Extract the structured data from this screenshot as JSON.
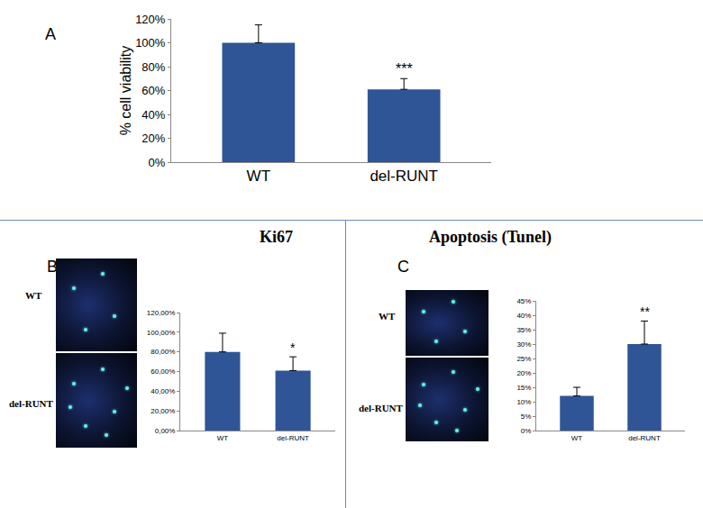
{
  "chart_data": [
    {
      "type": "bar",
      "panel": "A",
      "y_label": "% cell viability",
      "categories": [
        "WT",
        "del-RUNT"
      ],
      "values": [
        100,
        61
      ],
      "errors": [
        15,
        9
      ],
      "color": "#2f5597",
      "grid": false,
      "ylim": [
        0,
        120
      ],
      "yticks": [
        {
          "value": 0,
          "label": "0%"
        },
        {
          "value": 20,
          "label": "20%"
        },
        {
          "value": 40,
          "label": "40%"
        },
        {
          "value": 60,
          "label": "60%"
        },
        {
          "value": 80,
          "label": "80%"
        },
        {
          "value": 100,
          "label": "100%"
        },
        {
          "value": 120,
          "label": "120%"
        }
      ],
      "annotations": [
        {
          "category": "del-RUNT",
          "text": "***"
        }
      ]
    },
    {
      "type": "bar",
      "panel": "B",
      "title": "Ki67",
      "image_labels": [
        "WT",
        "del-RUNT"
      ],
      "categories": [
        "WT",
        "del-RUNT"
      ],
      "values": [
        80,
        61
      ],
      "errors": [
        19,
        14
      ],
      "color": "#2f5597",
      "grid": false,
      "ylim": [
        0,
        120
      ],
      "yticks": [
        {
          "value": 0,
          "label": "0,00%"
        },
        {
          "value": 20,
          "label": "20,00%"
        },
        {
          "value": 40,
          "label": "40,00%"
        },
        {
          "value": 60,
          "label": "60,00%"
        },
        {
          "value": 80,
          "label": "80,00%"
        },
        {
          "value": 100,
          "label": "100,00%"
        },
        {
          "value": 120,
          "label": "120,00%"
        }
      ],
      "annotations": [
        {
          "category": "del-RUNT",
          "text": "*"
        }
      ]
    },
    {
      "type": "bar",
      "panel": "C",
      "title": "Apoptosis (Tunel)",
      "image_labels": [
        "WT",
        "del-RUNT"
      ],
      "categories": [
        "WT",
        "del-RUNT"
      ],
      "values": [
        12,
        30
      ],
      "errors": [
        3,
        8
      ],
      "color": "#2f5597",
      "grid": false,
      "ylim": [
        0,
        45
      ],
      "yticks": [
        {
          "value": 0,
          "label": "0%"
        },
        {
          "value": 5,
          "label": "5%"
        },
        {
          "value": 10,
          "label": "10%"
        },
        {
          "value": 15,
          "label": "15%"
        },
        {
          "value": 20,
          "label": "20%"
        },
        {
          "value": 25,
          "label": "25%"
        },
        {
          "value": 30,
          "label": "30%"
        },
        {
          "value": 35,
          "label": "35%"
        },
        {
          "value": 40,
          "label": "40%"
        },
        {
          "value": 45,
          "label": "45%"
        }
      ],
      "annotations": [
        {
          "category": "del-RUNT",
          "text": "**"
        }
      ]
    }
  ]
}
